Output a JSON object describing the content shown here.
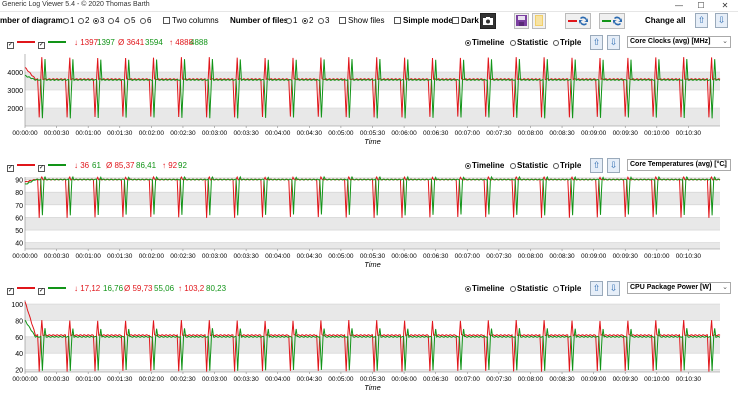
{
  "window": {
    "title": "Generic Log Viewer 5.4 - © 2020 Thomas Barth",
    "minimize": "—",
    "maximize": "☐",
    "close": "✕"
  },
  "toolbar": {
    "num_diagrams_label": "mber of diagrams",
    "diagram_options": [
      "1",
      "2",
      "3",
      "4",
      "5",
      "6"
    ],
    "diagram_selected": "3",
    "two_columns": "Two columns",
    "num_files_label": "Number of files",
    "file_options": [
      "1",
      "2",
      "3"
    ],
    "file_selected": "2",
    "show_files": "Show files",
    "simple_mode": "Simple mode",
    "dark": "Dark",
    "change_all": "Change all"
  },
  "panels": [
    {
      "stat_min": "↓ 1397",
      "stat_min2": "1397",
      "stat_avg": "Ø 3641",
      "stat_avg2": "3594",
      "stat_max": "↑ 4888",
      "stat_max2": "4888",
      "mode_timeline": "Timeline",
      "mode_statistic": "Statistic",
      "mode_triple": "Triple",
      "sensor": "Core Clocks (avg) [MHz]",
      "xlabel": "Time"
    },
    {
      "stat_min": "↓ 36",
      "stat_min2": "61",
      "stat_avg": "Ø 85,37",
      "stat_avg2": "86,41",
      "stat_max": "↑ 92",
      "stat_max2": "92",
      "mode_timeline": "Timeline",
      "mode_statistic": "Statistic",
      "mode_triple": "Triple",
      "sensor": "Core Temperatures (avg) [°C]",
      "xlabel": "Time"
    },
    {
      "stat_min": "↓ 17,12",
      "stat_min2": "16,76",
      "stat_avg": "Ø 59,73",
      "stat_avg2": "55,06",
      "stat_max": "↑ 103,2",
      "stat_max2": "80,23",
      "mode_timeline": "Timeline",
      "mode_statistic": "Statistic",
      "mode_triple": "Triple",
      "sensor": "CPU Package Power [W]",
      "xlabel": "Time"
    }
  ],
  "colors": {
    "series_1": "#e0161b",
    "series_2": "#129418",
    "plot_bg_light": "#ffffff",
    "plot_bg_dark": "#e8e8e8",
    "accent": "#2b6ab0"
  },
  "chart_data": [
    {
      "type": "line",
      "title": "",
      "ylabel": "",
      "xlabel": "Time",
      "ylim": [
        1000,
        5000
      ],
      "yticks": [
        2000,
        3000,
        4000
      ],
      "xlim": [
        0,
        660
      ],
      "xticks": [
        "00:00:00",
        "00:00:30",
        "00:01:00",
        "00:01:30",
        "00:02:00",
        "00:02:30",
        "00:03:00",
        "00:03:30",
        "00:04:00",
        "00:04:30",
        "00:05:00",
        "00:05:30",
        "00:06:00",
        "00:06:30",
        "00:07:00",
        "00:07:30",
        "00:08:00",
        "00:08:30",
        "00:09:00",
        "00:09:30",
        "00:10:00",
        "00:10:30"
      ],
      "series": [
        {
          "base": 3600,
          "start": 4250,
          "dip": 1500,
          "spike": 4800
        },
        {
          "base": 3560,
          "start": 3800,
          "dip": 1450,
          "spike": 4700
        }
      ]
    },
    {
      "type": "line",
      "title": "",
      "ylabel": "",
      "xlabel": "Time",
      "ylim": [
        35,
        92
      ],
      "yticks": [
        40,
        50,
        60,
        70,
        80,
        90
      ],
      "xlim": [
        0,
        660
      ],
      "xticks": [
        "00:00:00",
        "00:00:30",
        "00:01:00",
        "00:01:30",
        "00:02:00",
        "00:02:30",
        "00:03:00",
        "00:03:30",
        "00:04:00",
        "00:04:30",
        "00:05:00",
        "00:05:30",
        "00:06:00",
        "00:06:30",
        "00:07:00",
        "00:07:30",
        "00:08:00",
        "00:08:30",
        "00:09:00",
        "00:09:30",
        "00:10:00",
        "00:10:30"
      ],
      "series": [
        {
          "base": 90,
          "start": 88,
          "dip": 60,
          "spike": 92
        },
        {
          "base": 90,
          "start": 86,
          "dip": 62,
          "spike": 92
        }
      ]
    },
    {
      "type": "line",
      "title": "",
      "ylabel": "",
      "xlabel": "Time",
      "ylim": [
        17,
        105
      ],
      "yticks": [
        20,
        40,
        60,
        80,
        100
      ],
      "xlim": [
        0,
        660
      ],
      "xticks": [
        "00:00:00",
        "00:00:30",
        "00:01:00",
        "00:01:30",
        "00:02:00",
        "00:02:30",
        "00:03:00",
        "00:03:30",
        "00:04:00",
        "00:04:30",
        "00:05:00",
        "00:05:30",
        "00:06:00",
        "00:06:30",
        "00:07:00",
        "00:07:30",
        "00:08:00",
        "00:08:30",
        "00:09:00",
        "00:09:30",
        "00:10:00",
        "00:10:30"
      ],
      "series": [
        {
          "base": 62,
          "start": 103,
          "dip": 18,
          "spike": 80
        },
        {
          "base": 60,
          "start": 80,
          "dip": 19,
          "spike": 70
        }
      ]
    }
  ]
}
